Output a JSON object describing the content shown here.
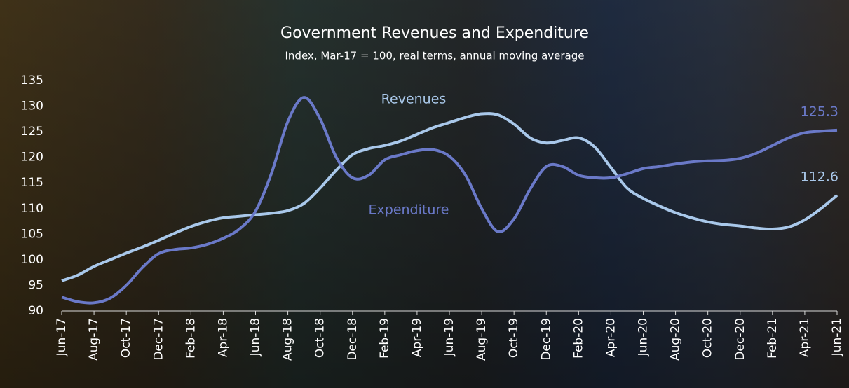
{
  "chart_data": {
    "type": "line",
    "title": "Government Revenues and Expenditure",
    "subtitle": "Index, Mar-17 = 100, real terms, annual moving average",
    "categories": [
      "Jun-17",
      null,
      "Aug-17",
      null,
      "Oct-17",
      null,
      "Dec-17",
      null,
      "Feb-18",
      null,
      "Apr-18",
      null,
      "Jun-18",
      null,
      "Aug-18",
      null,
      "Oct-18",
      null,
      "Dec-18",
      null,
      "Feb-19",
      null,
      "Apr-19",
      null,
      "Jun-19",
      null,
      "Aug-19",
      null,
      "Oct-19",
      null,
      "Dec-19",
      null,
      "Feb-20",
      null,
      "Apr-20",
      null,
      "Jun-20",
      null,
      "Aug-20",
      null,
      "Oct-20",
      null,
      "Dec-20",
      null,
      "Feb-21",
      null,
      "Apr-21",
      null,
      "Jun-21"
    ],
    "series": [
      {
        "name": "Revenues",
        "color": "#a9c8ea",
        "values": [
          95.9,
          97,
          98.7,
          100,
          101.3,
          102.5,
          103.8,
          105.2,
          106.5,
          107.5,
          108.2,
          108.5,
          108.8,
          109.1,
          109.6,
          111,
          114,
          117.5,
          120.5,
          121.7,
          122.3,
          123.2,
          124.5,
          125.8,
          126.8,
          127.8,
          128.5,
          128.3,
          126.5,
          123.8,
          122.8,
          123.3,
          123.8,
          122,
          118,
          114,
          112,
          110.5,
          109.2,
          108.2,
          107.4,
          106.9,
          106.6,
          106.2,
          106,
          106.4,
          107.8,
          110,
          112.6
        ]
      },
      {
        "name": "Expenditure",
        "color": "#6a79c8",
        "values": [
          92.7,
          91.8,
          91.6,
          92.5,
          95,
          98.5,
          101.2,
          102,
          102.3,
          103,
          104.2,
          106,
          109.5,
          117,
          127,
          131.7,
          127.5,
          120,
          116,
          116.5,
          119.5,
          120.5,
          121.3,
          121.5,
          120.2,
          116.5,
          110,
          105.5,
          108,
          113.8,
          118.2,
          118.2,
          116.5,
          116,
          116,
          116.8,
          117.8,
          118.2,
          118.7,
          119.1,
          119.3,
          119.4,
          119.8,
          120.8,
          122.3,
          123.8,
          124.8,
          125.1,
          125.3
        ]
      }
    ],
    "ylim": [
      90,
      135
    ],
    "yticks": [
      90,
      95,
      100,
      105,
      110,
      115,
      120,
      125,
      130,
      135
    ]
  }
}
